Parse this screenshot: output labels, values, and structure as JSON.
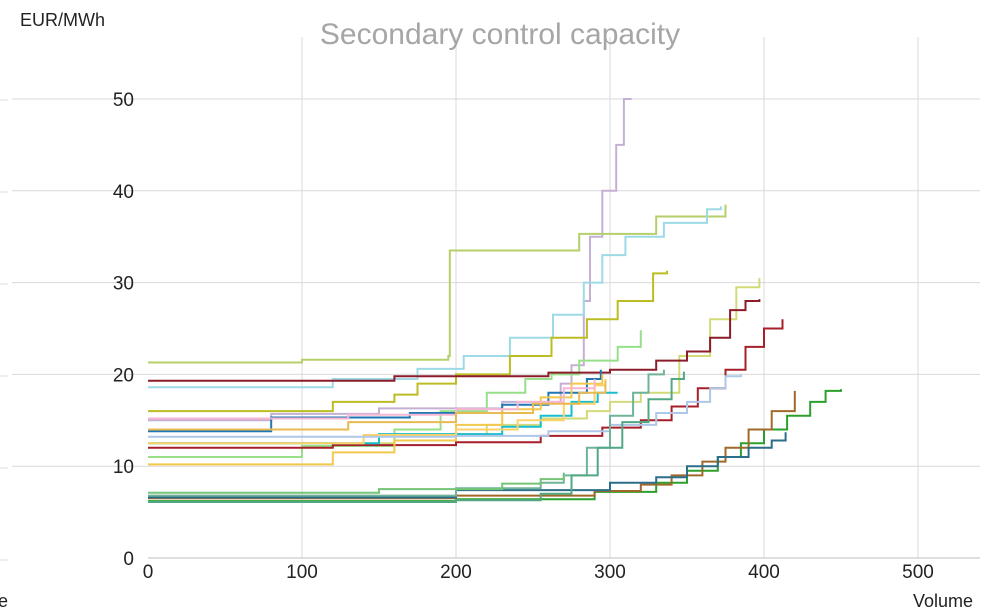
{
  "chart_data": {
    "type": "line",
    "title": "Secondary control capacity",
    "xlabel": "Volume",
    "ylabel": "EUR/MWh",
    "xlim": [
      0,
      540
    ],
    "ylim": [
      0,
      55
    ],
    "x_ticks": [
      0,
      100,
      200,
      300,
      400,
      500
    ],
    "y_ticks": [
      0,
      10,
      20,
      30,
      40,
      50
    ],
    "grid": true,
    "series": [
      {
        "color": "#c5b0d5",
        "points": [
          [
            0,
            15
          ],
          [
            80,
            15.7
          ],
          [
            150,
            16.3
          ],
          [
            230,
            17
          ],
          [
            268,
            19
          ],
          [
            275,
            21
          ],
          [
            283,
            28
          ],
          [
            287,
            35
          ],
          [
            295,
            40
          ],
          [
            304,
            45
          ],
          [
            309,
            50
          ],
          [
            314,
            50
          ]
        ]
      },
      {
        "color": "#b5cf6b",
        "points": [
          [
            0,
            21.3
          ],
          [
            100,
            21.6
          ],
          [
            195,
            22
          ],
          [
            196,
            33.5
          ],
          [
            280,
            35.3
          ],
          [
            330,
            37.2
          ],
          [
            375,
            38.5
          ]
        ]
      },
      {
        "color": "#9edae5",
        "points": [
          [
            0,
            18.6
          ],
          [
            120,
            19.5
          ],
          [
            175,
            20.6
          ],
          [
            205,
            22
          ],
          [
            235,
            24
          ],
          [
            263,
            26.5
          ],
          [
            283,
            30
          ],
          [
            295,
            33
          ],
          [
            310,
            35
          ],
          [
            335,
            36.5
          ],
          [
            363,
            38
          ],
          [
            372,
            38.3
          ]
        ]
      },
      {
        "color": "#bcbd22",
        "points": [
          [
            0,
            16
          ],
          [
            120,
            17
          ],
          [
            160,
            17.8
          ],
          [
            175,
            19
          ],
          [
            200,
            20
          ],
          [
            235,
            22
          ],
          [
            262,
            24
          ],
          [
            285,
            26
          ],
          [
            305,
            28
          ],
          [
            328,
            31
          ],
          [
            337,
            31.3
          ]
        ]
      },
      {
        "color": "#d2da7a",
        "points": [
          [
            0,
            12.5
          ],
          [
            160,
            13.5
          ],
          [
            220,
            14.5
          ],
          [
            255,
            15.2
          ],
          [
            285,
            16
          ],
          [
            300,
            17
          ],
          [
            320,
            18
          ],
          [
            345,
            22
          ],
          [
            365,
            26
          ],
          [
            382,
            29.5
          ],
          [
            397,
            30.5
          ]
        ]
      },
      {
        "color": "#98df8a",
        "points": [
          [
            0,
            11
          ],
          [
            100,
            12.2
          ],
          [
            160,
            14
          ],
          [
            190,
            16
          ],
          [
            220,
            18
          ],
          [
            245,
            19.5
          ],
          [
            262,
            20
          ],
          [
            280,
            21.5
          ],
          [
            305,
            23
          ],
          [
            320,
            24.8
          ]
        ]
      },
      {
        "color": "#8c1c2a",
        "points": [
          [
            0,
            19.3
          ],
          [
            160,
            19.8
          ],
          [
            260,
            20.2
          ],
          [
            300,
            20.5
          ],
          [
            330,
            21.5
          ],
          [
            350,
            22.5
          ],
          [
            365,
            24
          ],
          [
            378,
            27
          ],
          [
            388,
            28
          ],
          [
            397,
            28.2
          ]
        ]
      },
      {
        "color": "#a61f2a",
        "points": [
          [
            0,
            12
          ],
          [
            120,
            12.3
          ],
          [
            200,
            12.6
          ],
          [
            255,
            13.3
          ],
          [
            295,
            14.2
          ],
          [
            320,
            15
          ],
          [
            340,
            16.5
          ],
          [
            357,
            18.5
          ],
          [
            375,
            20.5
          ],
          [
            388,
            23
          ],
          [
            400,
            25
          ],
          [
            412,
            26
          ]
        ]
      },
      {
        "color": "#1f77b4",
        "points": [
          [
            0,
            13.8
          ],
          [
            80,
            15.3
          ],
          [
            170,
            15.8
          ],
          [
            230,
            16.7
          ],
          [
            260,
            18
          ],
          [
            285,
            19.5
          ],
          [
            294,
            20.5
          ]
        ]
      },
      {
        "color": "#17becf",
        "points": [
          [
            0,
            12.5
          ],
          [
            150,
            13.5
          ],
          [
            230,
            14.3
          ],
          [
            255,
            15.5
          ],
          [
            275,
            17
          ],
          [
            292,
            18
          ],
          [
            305,
            18
          ]
        ]
      },
      {
        "color": "#f2c94c",
        "points": [
          [
            0,
            10.2
          ],
          [
            120,
            11.5
          ],
          [
            160,
            12.8
          ],
          [
            200,
            14.5
          ],
          [
            230,
            16.2
          ],
          [
            255,
            17.5
          ],
          [
            275,
            19
          ],
          [
            295,
            20
          ]
        ]
      },
      {
        "color": "#fdd168",
        "points": [
          [
            0,
            12.5
          ],
          [
            140,
            13.4
          ],
          [
            200,
            14
          ],
          [
            240,
            15
          ],
          [
            270,
            16.8
          ],
          [
            290,
            18.8
          ],
          [
            297,
            19.5
          ]
        ]
      },
      {
        "color": "#f7b6d2",
        "points": [
          [
            0,
            15.2
          ],
          [
            130,
            15.6
          ],
          [
            200,
            16.2
          ],
          [
            240,
            17
          ],
          [
            270,
            18.5
          ],
          [
            290,
            19.5
          ]
        ]
      },
      {
        "color": "#e7ba52",
        "points": [
          [
            0,
            14
          ],
          [
            130,
            14.8
          ],
          [
            200,
            15.8
          ],
          [
            250,
            16.8
          ],
          [
            280,
            18
          ],
          [
            297,
            19.3
          ]
        ]
      },
      {
        "color": "#aec7e8",
        "points": [
          [
            0,
            13.2
          ],
          [
            200,
            13.3
          ],
          [
            260,
            13.8
          ],
          [
            300,
            14.5
          ],
          [
            330,
            15.8
          ],
          [
            350,
            17
          ],
          [
            365,
            18.5
          ],
          [
            375,
            19.8
          ],
          [
            385,
            20
          ]
        ]
      },
      {
        "color": "#2ca02c",
        "points": [
          [
            0,
            6.2
          ],
          [
            200,
            6.4
          ],
          [
            290,
            7.2
          ],
          [
            330,
            8.2
          ],
          [
            350,
            9.5
          ],
          [
            370,
            11
          ],
          [
            385,
            12.5
          ],
          [
            400,
            14
          ],
          [
            415,
            15.5
          ],
          [
            430,
            17
          ],
          [
            440,
            18.2
          ],
          [
            450,
            18.4
          ]
        ]
      },
      {
        "color": "#a0692a",
        "points": [
          [
            0,
            6.5
          ],
          [
            200,
            6.8
          ],
          [
            290,
            7.3
          ],
          [
            320,
            8
          ],
          [
            340,
            9
          ],
          [
            360,
            10.5
          ],
          [
            375,
            12
          ],
          [
            390,
            14
          ],
          [
            405,
            16
          ],
          [
            420,
            18.2
          ]
        ]
      },
      {
        "color": "#2b6e8a",
        "points": [
          [
            0,
            6.6
          ],
          [
            200,
            7.4
          ],
          [
            300,
            8.2
          ],
          [
            330,
            8.8
          ],
          [
            350,
            10
          ],
          [
            370,
            11
          ],
          [
            390,
            12
          ],
          [
            405,
            12.8
          ],
          [
            414,
            13.7
          ]
        ]
      },
      {
        "color": "#6fb39a",
        "points": [
          [
            0,
            6.8
          ],
          [
            200,
            7.6
          ],
          [
            255,
            8.2
          ],
          [
            270,
            9
          ],
          [
            285,
            12
          ],
          [
            300,
            15.5
          ],
          [
            315,
            18
          ],
          [
            325,
            20
          ],
          [
            335,
            20.5
          ]
        ]
      },
      {
        "color": "#52a884",
        "points": [
          [
            0,
            6.1
          ],
          [
            200,
            6.3
          ],
          [
            255,
            7
          ],
          [
            275,
            9
          ],
          [
            292,
            12
          ],
          [
            308,
            14.8
          ],
          [
            325,
            17.3
          ],
          [
            340,
            19.5
          ],
          [
            348,
            20.3
          ]
        ]
      },
      {
        "color": "#74c476",
        "points": [
          [
            0,
            7.1
          ],
          [
            150,
            7.5
          ],
          [
            230,
            8.1
          ],
          [
            255,
            8.6
          ],
          [
            270,
            9.3
          ]
        ]
      }
    ]
  },
  "edge_fragments": {
    "left_partial_label": "e"
  }
}
